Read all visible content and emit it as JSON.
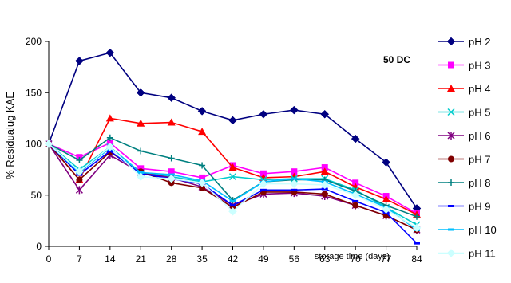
{
  "chart_data": {
    "type": "line",
    "annotation": "50 DC",
    "xlabel": "storage time (days)",
    "ylabel": "% Residualug KAE",
    "x": [
      0,
      7,
      14,
      21,
      28,
      35,
      42,
      49,
      56,
      63,
      70,
      77,
      84
    ],
    "xlim": [
      0,
      84
    ],
    "ylim": [
      0,
      200
    ],
    "yticks": [
      0,
      50,
      100,
      150,
      200
    ],
    "grid": false,
    "legend": "right",
    "series": [
      {
        "name": "pH 2",
        "color": "#000080",
        "marker": "diamond",
        "values": [
          100,
          181,
          189,
          150,
          145,
          132,
          123,
          129,
          133,
          129,
          105,
          82,
          37
        ]
      },
      {
        "name": "pH 3",
        "color": "#FF00FF",
        "marker": "square",
        "values": [
          100,
          87,
          101,
          76,
          73,
          67,
          79,
          71,
          73,
          77,
          62,
          49,
          32
        ]
      },
      {
        "name": "pH 4",
        "color": "#FF0000",
        "marker": "triangle",
        "values": [
          100,
          65,
          125,
          120,
          121,
          112,
          77,
          67,
          68,
          73,
          58,
          46,
          31
        ]
      },
      {
        "name": "pH 5",
        "color": "#00CCCC",
        "marker": "x",
        "values": [
          100,
          75,
          97,
          72,
          68,
          63,
          68,
          65,
          66,
          66,
          55,
          38,
          21
        ]
      },
      {
        "name": "pH 6",
        "color": "#800080",
        "marker": "star",
        "values": [
          100,
          55,
          89,
          72,
          67,
          58,
          40,
          51,
          52,
          49,
          40,
          30,
          16
        ]
      },
      {
        "name": "pH 7",
        "color": "#800000",
        "marker": "circle",
        "values": [
          100,
          65,
          92,
          73,
          62,
          57,
          38,
          53,
          53,
          51,
          40,
          30,
          16
        ]
      },
      {
        "name": "pH 8",
        "color": "#008080",
        "marker": "plus",
        "values": [
          100,
          84,
          106,
          93,
          86,
          79,
          45,
          63,
          65,
          65,
          54,
          40,
          29
        ]
      },
      {
        "name": "pH 9",
        "color": "#0000FF",
        "marker": "dash",
        "values": [
          100,
          70,
          93,
          71,
          66,
          61,
          40,
          55,
          55,
          56,
          44,
          33,
          3
        ]
      },
      {
        "name": "pH 10",
        "color": "#00BFFF",
        "marker": "dash",
        "values": [
          100,
          72,
          96,
          72,
          70,
          64,
          44,
          63,
          66,
          63,
          51,
          38,
          16
        ]
      },
      {
        "name": "pH 11",
        "color": "#CCFFFF",
        "marker": "diamond",
        "values": [
          100,
          73,
          97,
          68,
          66,
          62,
          34,
          61,
          61,
          60,
          50,
          36,
          18
        ]
      }
    ]
  }
}
